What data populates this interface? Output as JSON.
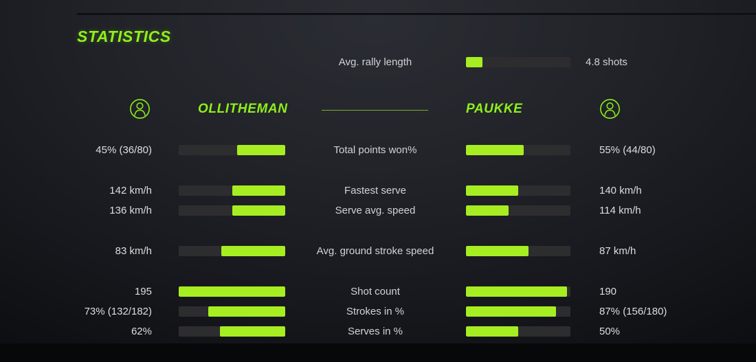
{
  "colors": {
    "bar_fill": "#a6ee21",
    "heading_text": "#8ef019",
    "divider_line": "#7cae2b",
    "bar_track": "#2d2d2f",
    "label_text": "#d2d3d5",
    "value_text": "#dddedf"
  },
  "title": "STATISTICS",
  "avg_rally": {
    "label": "Avg. rally length",
    "value": "4.8 shots",
    "fill_pct": 16
  },
  "players": {
    "left": {
      "name": "OLLITHEMAN"
    },
    "right": {
      "name": "PAUKKE"
    }
  },
  "chart_data": {
    "type": "bar",
    "note": "head-to-head stat comparison, bars fill toward center value",
    "sections": [
      {
        "rows": [
          {
            "label": "Total points won%",
            "left_value": "45% (36/80)",
            "right_value": "55% (44/80)",
            "left_pct": 45,
            "right_pct": 55
          }
        ]
      },
      {
        "rows": [
          {
            "label": "Fastest serve",
            "left_value": "142 km/h",
            "right_value": "140 km/h",
            "left_pct": 50,
            "right_pct": 50
          },
          {
            "label": "Serve avg. speed",
            "left_value": "136 km/h",
            "right_value": "114 km/h",
            "left_pct": 50,
            "right_pct": 41
          }
        ]
      },
      {
        "rows": [
          {
            "label": "Avg. ground stroke speed",
            "left_value": "83 km/h",
            "right_value": "87 km/h",
            "left_pct": 60,
            "right_pct": 60
          }
        ]
      },
      {
        "rows": [
          {
            "label": "Shot count",
            "left_value": "195",
            "right_value": "190",
            "left_pct": 100,
            "right_pct": 97
          },
          {
            "label": "Strokes in %",
            "left_value": "73% (132/182)",
            "right_value": "87% (156/180)",
            "left_pct": 72,
            "right_pct": 86
          },
          {
            "label": "Serves in %",
            "left_value": "62%",
            "right_value": "50%",
            "left_pct": 61,
            "right_pct": 50
          }
        ]
      }
    ]
  }
}
